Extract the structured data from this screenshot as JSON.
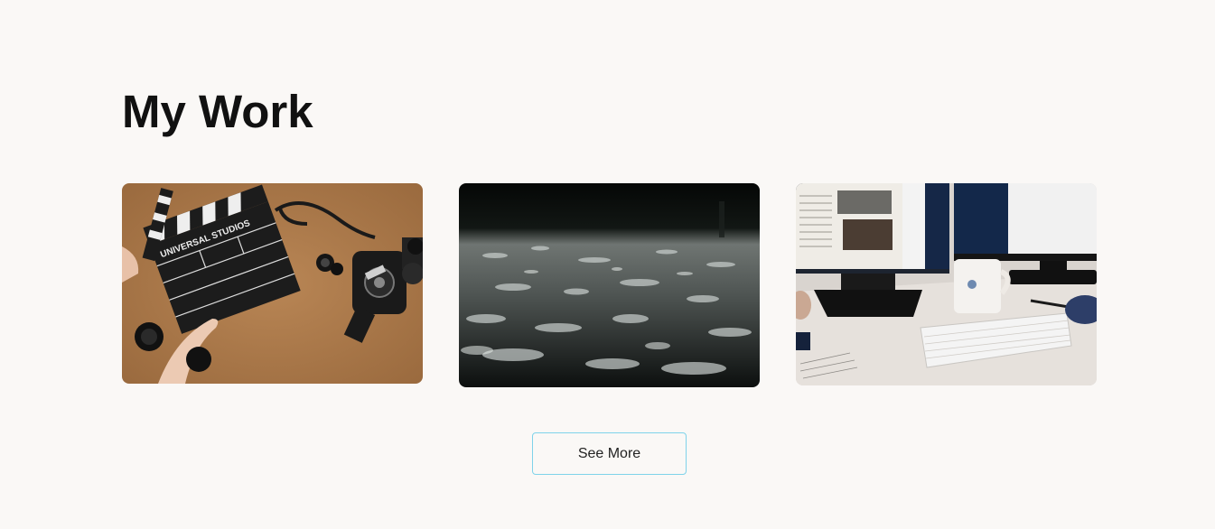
{
  "section": {
    "title": "My Work"
  },
  "cards": [
    {
      "icon": "film-clapperboard-photo",
      "clapper_text": "UNIVERSAL STUDIOS"
    },
    {
      "icon": "rain-puddle-photo"
    },
    {
      "icon": "desk-computer-photo"
    }
  ],
  "actions": {
    "see_more_label": "See More"
  },
  "colors": {
    "background": "#faf8f6",
    "title": "#111111",
    "button_border": "#7fd3ea"
  }
}
